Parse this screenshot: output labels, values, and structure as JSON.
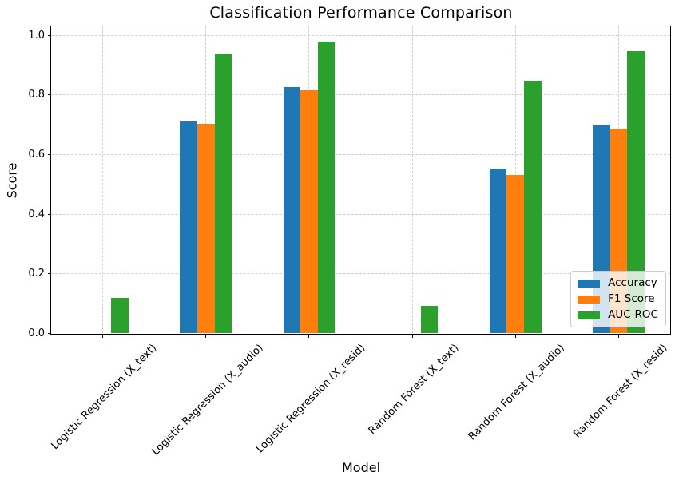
{
  "chart_data": {
    "type": "bar",
    "title": "Classification Performance Comparison",
    "xlabel": "Model",
    "ylabel": "Score",
    "categories": [
      "Logistic Regression (X_text)",
      "Logistic Regression (X_audio)",
      "Logistic Regression (X_resid)",
      "Random Forest (X_text)",
      "Random Forest (X_audio)",
      "Random Forest (X_resid)"
    ],
    "series": [
      {
        "name": "Accuracy",
        "color": "#1f77b4",
        "values": [
          0.0,
          0.712,
          0.826,
          0.0,
          0.554,
          0.701
        ]
      },
      {
        "name": "F1 Score",
        "color": "#ff7f0e",
        "values": [
          0.0,
          0.702,
          0.817,
          0.0,
          0.533,
          0.686
        ]
      },
      {
        "name": "AUC-ROC",
        "color": "#2ca02c",
        "values": [
          0.12,
          0.937,
          0.98,
          0.093,
          0.849,
          0.948
        ]
      }
    ],
    "yticks": [
      0.0,
      0.2,
      0.4,
      0.6,
      0.8,
      1.0
    ],
    "ylim": [
      0,
      1.03
    ],
    "grid": true,
    "grid_style": "dashed",
    "legend_position": "lower right",
    "bar_group_width_fraction": 0.5
  }
}
